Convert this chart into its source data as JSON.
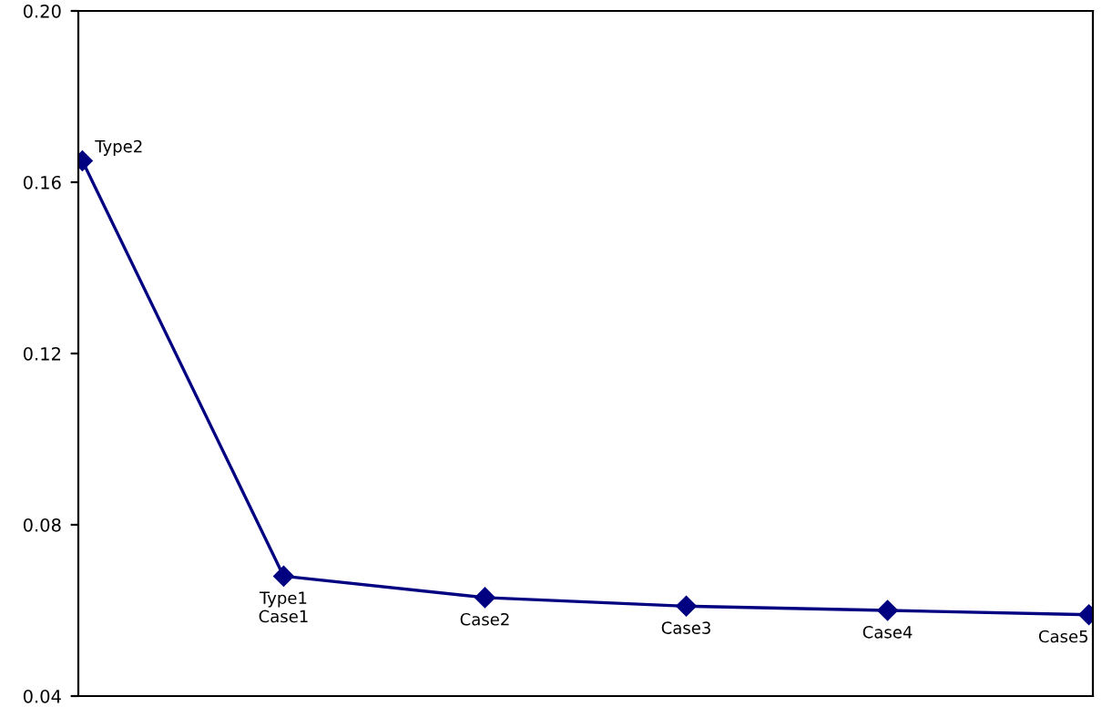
{
  "chart_data": {
    "type": "line",
    "categories": [
      null,
      null,
      null,
      null,
      null,
      null
    ],
    "series": [
      {
        "color": "#000080",
        "values": [
          0.165,
          0.068,
          0.063,
          0.061,
          0.06,
          0.059
        ]
      }
    ],
    "ylim": [
      0.04,
      0.2
    ],
    "yticks": [
      0.04,
      0.08,
      0.12,
      0.16,
      {
        "value": 0.2,
        "label": "0.20"
      }
    ],
    "marker": "diamond",
    "line_style": "solid",
    "grid": false,
    "legend": false,
    "tick_labels": "y",
    "annotations": [
      "Type2",
      "Type1\nCase1",
      "Case2",
      "Case3",
      "Case4",
      "Case5"
    ]
  }
}
